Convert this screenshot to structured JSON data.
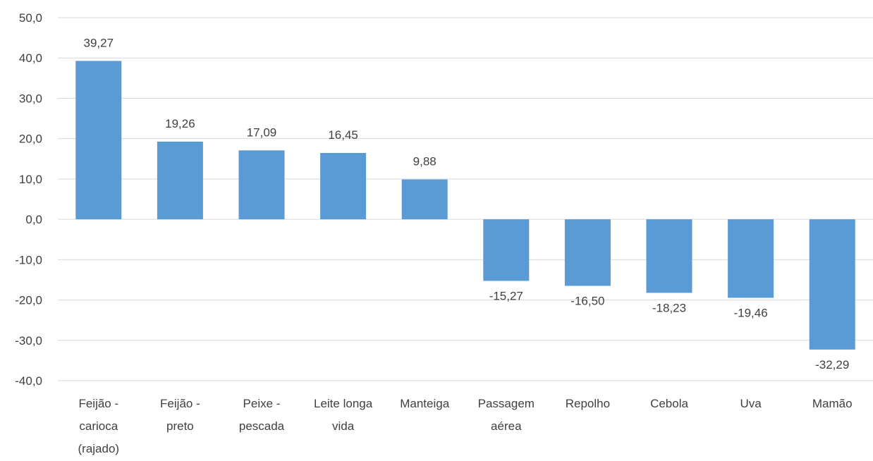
{
  "chart_data": {
    "type": "bar",
    "categories": [
      [
        "Feijão -",
        "carioca",
        "(rajado)"
      ],
      [
        "Feijão -",
        "preto"
      ],
      [
        "Peixe -",
        "pescada"
      ],
      [
        "Leite longa",
        "vida"
      ],
      [
        "Manteiga"
      ],
      [
        "Passagem",
        "aérea"
      ],
      [
        "Repolho"
      ],
      [
        "Cebola"
      ],
      [
        "Uva"
      ],
      [
        "Mamão"
      ]
    ],
    "values": [
      39.27,
      19.26,
      17.09,
      16.45,
      9.88,
      -15.27,
      -16.5,
      -18.23,
      -19.46,
      -32.29
    ],
    "value_labels": [
      "39,27",
      "19,26",
      "17,09",
      "16,45",
      "9,88",
      "-15,27",
      "-16,50",
      "-18,23",
      "-19,46",
      "-32,29"
    ],
    "ylim": [
      -40,
      50
    ],
    "y_ticks": [
      50,
      40,
      30,
      20,
      10,
      0,
      -10,
      -20,
      -30,
      -40
    ],
    "y_tick_labels": [
      "50,0",
      "40,0",
      "30,0",
      "20,0",
      "10,0",
      "0,0",
      "-10,0",
      "-20,0",
      "-30,0",
      "-40,0"
    ],
    "grid": true,
    "bar_color": "#5B9BD5",
    "grid_color": "#D9D9D9",
    "text_color": "#404040"
  }
}
